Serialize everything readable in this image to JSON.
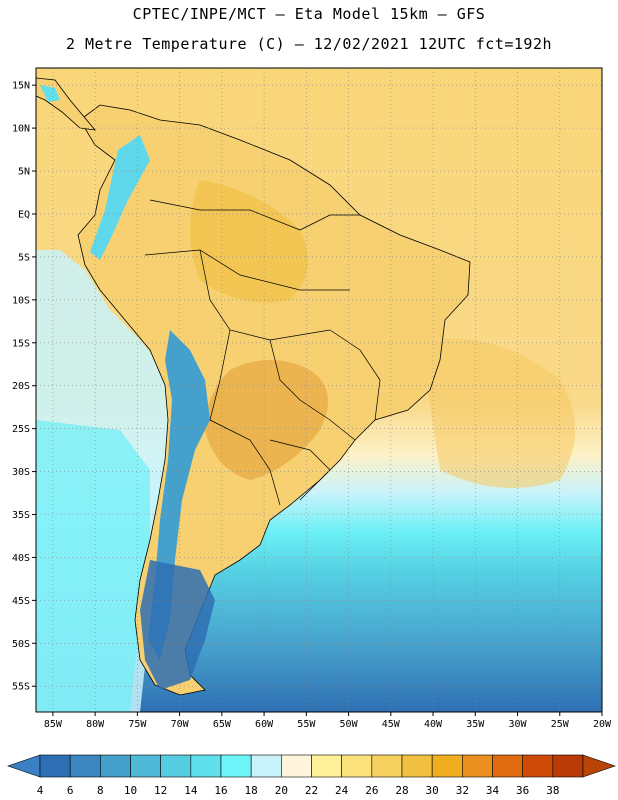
{
  "title_line1": "CPTEC/INPE/MCT –  Eta Model 15km – GFS",
  "title_line2": "2 Metre Temperature (C) – 12/02/2021 12UTC fct=192h",
  "lat_labels": [
    "15N",
    "10N",
    "5N",
    "EQ",
    "5S",
    "10S",
    "15S",
    "20S",
    "25S",
    "30S",
    "35S",
    "40S",
    "45S",
    "50S",
    "55S"
  ],
  "lat_values": [
    15,
    10,
    5,
    0,
    -5,
    -10,
    -15,
    -20,
    -25,
    -30,
    -35,
    -40,
    -45,
    -50,
    -55
  ],
  "lon_labels": [
    "85W",
    "80W",
    "75W",
    "70W",
    "65W",
    "60W",
    "55W",
    "50W",
    "45W",
    "40W",
    "35W",
    "30W",
    "25W",
    "20W"
  ],
  "lon_values": [
    -85,
    -80,
    -75,
    -70,
    -65,
    -60,
    -55,
    -50,
    -45,
    -40,
    -35,
    -30,
    -25,
    -20
  ],
  "colorbar": {
    "labels": [
      "4",
      "6",
      "8",
      "10",
      "12",
      "14",
      "16",
      "18",
      "20",
      "22",
      "24",
      "26",
      "28",
      "30",
      "32",
      "34",
      "36",
      "38"
    ],
    "colors": [
      "#2e6fb3",
      "#3b85c0",
      "#46a0cc",
      "#4fb9d8",
      "#55cce0",
      "#5fe0ec",
      "#6cf4f8",
      "#c9f3fb",
      "#fff4dc",
      "#fff09a",
      "#fbe27a",
      "#f7d160",
      "#f2c040",
      "#eeae20",
      "#e99020",
      "#e06a10",
      "#cc4a06",
      "#b83a06"
    ],
    "low_color": "#3b7fc4",
    "high_color": "#b84406"
  },
  "colors": {
    "ocean_warm": "#f9d97a",
    "land_hot": "#eab04a",
    "land_mild": "#f6d071",
    "grid": "#888888"
  }
}
